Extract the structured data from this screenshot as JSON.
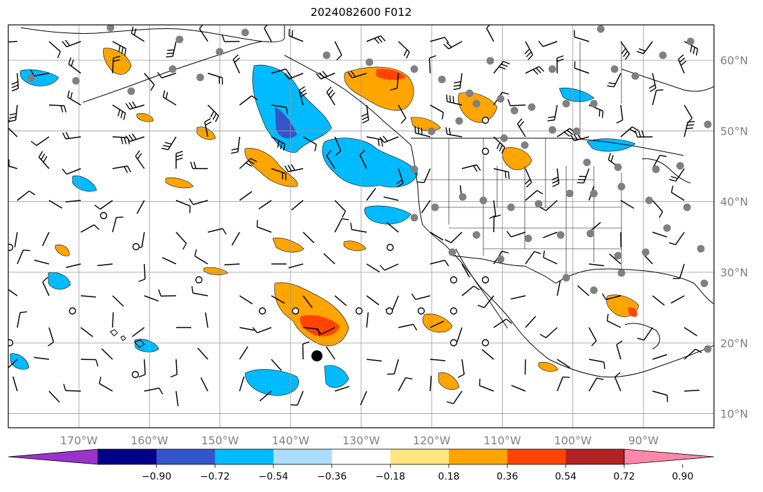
{
  "title": "2024082600 F012",
  "map": {
    "lon_ticks": [
      {
        "label": "170°W",
        "lon": -170
      },
      {
        "label": "160°W",
        "lon": -160
      },
      {
        "label": "150°W",
        "lon": -150
      },
      {
        "label": "140°W",
        "lon": -140
      },
      {
        "label": "130°W",
        "lon": -130
      },
      {
        "label": "120°W",
        "lon": -120
      },
      {
        "label": "110°W",
        "lon": -110
      },
      {
        "label": "100°W",
        "lon": -100
      },
      {
        "label": "90°W",
        "lon": -90
      }
    ],
    "lat_ticks": [
      {
        "label": "60°N",
        "lat": 60
      },
      {
        "label": "50°N",
        "lat": 50
      },
      {
        "label": "40°N",
        "lat": 40
      },
      {
        "label": "30°N",
        "lat": 30
      },
      {
        "label": "20°N",
        "lat": 20
      },
      {
        "label": "10°N",
        "lat": 10
      }
    ],
    "extent": {
      "lon_min": -180,
      "lon_max": -80,
      "lat_min": 8,
      "lat_max": 65
    },
    "grid_lines": true
  },
  "colorbar": {
    "ticks": [
      "−0.90",
      "−0.72",
      "−0.54",
      "−0.36",
      "−0.18",
      "0.18",
      "0.36",
      "0.54",
      "0.72",
      "0.90"
    ],
    "colors": [
      "#9933cc",
      "#000088",
      "#3355cc",
      "#00bbff",
      "#aaddff",
      "#ffffff",
      "#ffe680",
      "#ffa500",
      "#ff4400",
      "#b22222",
      "#ff88aa"
    ],
    "extend": "both"
  },
  "colors": {
    "orange": "#ffa500",
    "red": "#ff4400",
    "light_yellow": "#ffe680",
    "cyan": "#00bbff",
    "light_blue": "#aaddff",
    "blue": "#3355cc",
    "station_gray": "#808080"
  }
}
